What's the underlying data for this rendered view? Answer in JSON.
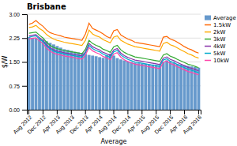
{
  "chart_data": {
    "type": "bar",
    "title": "Brisbane",
    "x_label": "Average",
    "y_label": "$/W",
    "categories": [
      "Aug 2012",
      null,
      null,
      null,
      "Dec 2012",
      null,
      null,
      null,
      "Apr 2013",
      null,
      null,
      null,
      "Aug 2013",
      null,
      null,
      null,
      "Dec 2013",
      null,
      null,
      null,
      "Apr 2014",
      null,
      null,
      null,
      "Aug 2014",
      null,
      null,
      null,
      "Dec 2014",
      null,
      null,
      null,
      "Apr 2015",
      null,
      null,
      null,
      "Aug 2015",
      null,
      null,
      null,
      "Dec 2015",
      null,
      null,
      null,
      "Apr 2016",
      null,
      null,
      null,
      "Aug 2016"
    ],
    "series": [
      {
        "name": "Average",
        "type": "bar",
        "color": "#6699CC",
        "values": [
          2.28,
          2.26,
          2.24,
          2.22,
          2.2,
          2.15,
          2.1,
          2.05,
          2.0,
          1.95,
          1.9,
          1.88,
          1.85,
          1.82,
          1.8,
          1.78,
          1.75,
          1.72,
          1.7,
          1.68,
          1.65,
          1.63,
          1.72,
          1.76,
          1.7,
          1.62,
          1.58,
          1.55,
          1.52,
          1.5,
          1.48,
          1.46,
          1.45,
          1.44,
          1.43,
          1.42,
          1.41,
          1.4,
          1.5,
          1.55,
          1.52,
          1.48,
          1.44,
          1.42,
          1.4,
          1.38,
          1.36,
          1.34,
          1.32
        ]
      },
      {
        "name": "1.5kW",
        "type": "line",
        "color": "#FF6600",
        "values": [
          2.68,
          2.72,
          2.8,
          2.7,
          2.62,
          2.5,
          2.42,
          2.38,
          2.35,
          2.32,
          2.28,
          2.26,
          2.24,
          2.22,
          2.2,
          2.18,
          2.38,
          2.72,
          2.55,
          2.5,
          2.45,
          2.38,
          2.3,
          2.25,
          2.48,
          2.52,
          2.35,
          2.28,
          2.22,
          2.18,
          2.12,
          2.1,
          2.08,
          2.06,
          2.04,
          2.02,
          2.0,
          1.98,
          2.28,
          2.3,
          2.22,
          2.18,
          2.12,
          2.05,
          1.98,
          1.92,
          1.88,
          1.82,
          1.78
        ]
      },
      {
        "name": "2kW",
        "type": "line",
        "color": "#FFAA00",
        "values": [
          2.58,
          2.6,
          2.65,
          2.55,
          2.48,
          2.36,
          2.28,
          2.22,
          2.18,
          2.15,
          2.12,
          2.1,
          2.08,
          2.06,
          2.04,
          2.02,
          2.18,
          2.5,
          2.38,
          2.32,
          2.28,
          2.2,
          2.15,
          2.1,
          2.28,
          2.32,
          2.18,
          2.12,
          2.06,
          2.02,
          1.98,
          1.96,
          1.94,
          1.92,
          1.9,
          1.88,
          1.86,
          1.84,
          2.08,
          2.12,
          2.04,
          2.0,
          1.94,
          1.88,
          1.82,
          1.76,
          1.72,
          1.66,
          1.62
        ]
      },
      {
        "name": "3kW",
        "type": "line",
        "color": "#33AA33",
        "values": [
          2.4,
          2.42,
          2.44,
          2.34,
          2.25,
          2.12,
          2.02,
          1.96,
          1.92,
          1.89,
          1.86,
          1.84,
          1.82,
          1.8,
          1.78,
          1.76,
          1.9,
          2.18,
          2.08,
          2.02,
          1.98,
          1.9,
          1.86,
          1.8,
          1.98,
          2.02,
          1.88,
          1.8,
          1.74,
          1.7,
          1.66,
          1.64,
          1.62,
          1.6,
          1.58,
          1.56,
          1.54,
          1.52,
          1.72,
          1.76,
          1.68,
          1.64,
          1.58,
          1.53,
          1.48,
          1.43,
          1.4,
          1.36,
          1.32
        ]
      },
      {
        "name": "4kW",
        "type": "line",
        "color": "#8833AA",
        "values": [
          2.32,
          2.34,
          2.36,
          2.26,
          2.18,
          2.04,
          1.94,
          1.88,
          1.84,
          1.82,
          1.79,
          1.77,
          1.75,
          1.73,
          1.71,
          1.69,
          1.82,
          2.08,
          1.98,
          1.92,
          1.88,
          1.8,
          1.76,
          1.7,
          1.88,
          1.92,
          1.78,
          1.7,
          1.64,
          1.6,
          1.56,
          1.54,
          1.52,
          1.5,
          1.48,
          1.46,
          1.44,
          1.42,
          1.62,
          1.66,
          1.58,
          1.54,
          1.48,
          1.43,
          1.38,
          1.33,
          1.3,
          1.26,
          1.22
        ]
      },
      {
        "name": "5kW",
        "type": "line",
        "color": "#00AACC",
        "values": [
          2.28,
          2.3,
          2.32,
          2.22,
          2.14,
          2.0,
          1.9,
          1.84,
          1.8,
          1.78,
          1.75,
          1.73,
          1.71,
          1.69,
          1.67,
          1.65,
          1.78,
          2.02,
          1.92,
          1.86,
          1.82,
          1.74,
          1.7,
          1.64,
          1.82,
          1.86,
          1.72,
          1.64,
          1.58,
          1.54,
          1.5,
          1.48,
          1.46,
          1.44,
          1.42,
          1.4,
          1.38,
          1.36,
          1.56,
          1.6,
          1.52,
          1.48,
          1.42,
          1.37,
          1.32,
          1.27,
          1.24,
          1.2,
          1.17
        ]
      },
      {
        "name": "10kW",
        "type": "line",
        "color": "#FF44AA",
        "values": [
          2.22,
          2.24,
          2.26,
          2.16,
          2.08,
          1.94,
          1.84,
          1.78,
          1.74,
          1.72,
          1.69,
          1.67,
          1.65,
          1.63,
          1.61,
          1.59,
          1.72,
          1.95,
          1.85,
          1.79,
          1.75,
          1.67,
          1.63,
          1.57,
          1.75,
          1.79,
          1.65,
          1.57,
          1.51,
          1.47,
          1.43,
          1.41,
          1.39,
          1.37,
          1.35,
          1.33,
          1.31,
          1.29,
          1.49,
          1.53,
          1.45,
          1.41,
          1.35,
          1.3,
          1.25,
          1.2,
          1.17,
          1.13,
          1.1
        ]
      }
    ],
    "ylim": [
      0,
      3
    ],
    "yticks": [
      {
        "value": 0,
        "label": "0.00"
      },
      {
        "value": 0.75,
        "label": "0.75"
      },
      {
        "value": 1.5,
        "label": "1.50"
      },
      {
        "value": 2.25,
        "label": "2.25"
      },
      {
        "value": 3,
        "label": "3.00"
      }
    ],
    "grid": true,
    "legend": "upper right"
  }
}
